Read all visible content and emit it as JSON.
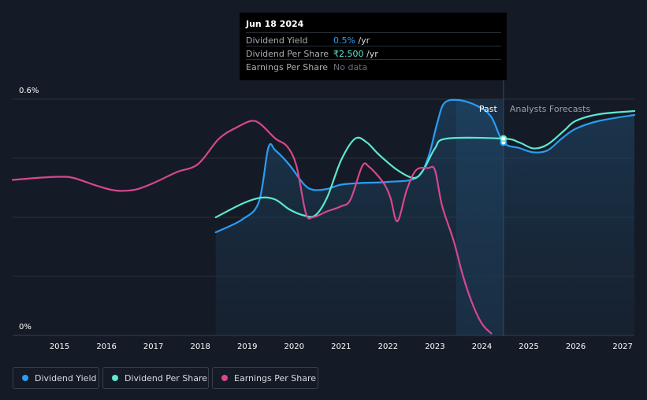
{
  "chart_data": {
    "type": "line",
    "x_range": [
      2014.0,
      2027.25
    ],
    "ylim": [
      0,
      0.6
    ],
    "y_ticks": [
      "0%",
      "0.6%"
    ],
    "x_ticks": [
      "2015",
      "2016",
      "2017",
      "2018",
      "2019",
      "2020",
      "2021",
      "2022",
      "2023",
      "2024",
      "2025",
      "2026",
      "2027"
    ],
    "past_label": "Past",
    "forecast_label": "Analysts Forecasts",
    "marker_year": 2024.46,
    "series": [
      {
        "name": "Dividend Yield",
        "color": "#2a9df4",
        "points": [
          [
            2018.33,
            0.262
          ],
          [
            2018.9,
            0.295
          ],
          [
            2019.25,
            0.34
          ],
          [
            2019.45,
            0.477
          ],
          [
            2019.6,
            0.47
          ],
          [
            2019.9,
            0.433
          ],
          [
            2020.2,
            0.385
          ],
          [
            2020.4,
            0.37
          ],
          [
            2020.7,
            0.372
          ],
          [
            2021.0,
            0.383
          ],
          [
            2021.4,
            0.387
          ],
          [
            2022.0,
            0.39
          ],
          [
            2022.6,
            0.4
          ],
          [
            2022.85,
            0.45
          ],
          [
            2023.05,
            0.54
          ],
          [
            2023.2,
            0.59
          ],
          [
            2023.5,
            0.598
          ],
          [
            2023.9,
            0.583
          ],
          [
            2024.2,
            0.555
          ],
          [
            2024.46,
            0.49
          ],
          [
            2024.8,
            0.476
          ],
          [
            2025.1,
            0.465
          ],
          [
            2025.4,
            0.47
          ],
          [
            2025.7,
            0.5
          ],
          [
            2026.0,
            0.525
          ],
          [
            2026.5,
            0.545
          ],
          [
            2027.25,
            0.56
          ]
        ]
      },
      {
        "name": "Dividend Per Share",
        "color": "#5ce8d0",
        "points": [
          [
            2018.33,
            0.3
          ],
          [
            2018.9,
            0.335
          ],
          [
            2019.3,
            0.35
          ],
          [
            2019.6,
            0.345
          ],
          [
            2019.9,
            0.32
          ],
          [
            2020.2,
            0.305
          ],
          [
            2020.45,
            0.305
          ],
          [
            2020.7,
            0.35
          ],
          [
            2021.0,
            0.445
          ],
          [
            2021.3,
            0.5
          ],
          [
            2021.55,
            0.49
          ],
          [
            2021.8,
            0.46
          ],
          [
            2022.2,
            0.42
          ],
          [
            2022.55,
            0.4
          ],
          [
            2022.75,
            0.42
          ],
          [
            2023.0,
            0.475
          ],
          [
            2023.25,
            0.5
          ],
          [
            2024.46,
            0.5
          ],
          [
            2024.8,
            0.49
          ],
          [
            2025.1,
            0.475
          ],
          [
            2025.4,
            0.485
          ],
          [
            2025.75,
            0.52
          ],
          [
            2026.0,
            0.545
          ],
          [
            2026.5,
            0.562
          ],
          [
            2027.25,
            0.57
          ]
        ]
      },
      {
        "name": "Earnings Per Share",
        "color": "#d7478f",
        "points": [
          [
            2014.0,
            0.395
          ],
          [
            2014.5,
            0.4
          ],
          [
            2015.0,
            0.403
          ],
          [
            2015.3,
            0.4
          ],
          [
            2015.8,
            0.38
          ],
          [
            2016.2,
            0.368
          ],
          [
            2016.6,
            0.37
          ],
          [
            2017.0,
            0.387
          ],
          [
            2017.5,
            0.415
          ],
          [
            2017.95,
            0.435
          ],
          [
            2018.4,
            0.5
          ],
          [
            2018.8,
            0.53
          ],
          [
            2019.1,
            0.545
          ],
          [
            2019.3,
            0.535
          ],
          [
            2019.6,
            0.5
          ],
          [
            2019.85,
            0.48
          ],
          [
            2020.05,
            0.43
          ],
          [
            2020.25,
            0.31
          ],
          [
            2020.4,
            0.3
          ],
          [
            2020.7,
            0.315
          ],
          [
            2021.0,
            0.328
          ],
          [
            2021.2,
            0.345
          ],
          [
            2021.45,
            0.43
          ],
          [
            2021.6,
            0.428
          ],
          [
            2021.9,
            0.388
          ],
          [
            2022.05,
            0.35
          ],
          [
            2022.2,
            0.29
          ],
          [
            2022.4,
            0.37
          ],
          [
            2022.6,
            0.42
          ],
          [
            2022.85,
            0.425
          ],
          [
            2023.0,
            0.42
          ],
          [
            2023.15,
            0.33
          ],
          [
            2023.4,
            0.24
          ],
          [
            2023.6,
            0.15
          ],
          [
            2023.8,
            0.08
          ],
          [
            2024.0,
            0.03
          ],
          [
            2024.2,
            0.005
          ]
        ]
      }
    ]
  },
  "tooltip": {
    "date": "Jun 18 2024",
    "rows": [
      {
        "label": "Dividend Yield",
        "value": "0.5%",
        "unit": " /yr"
      },
      {
        "label": "Dividend Per Share",
        "value": "₹2.500",
        "unit": " /yr"
      },
      {
        "label": "Earnings Per Share",
        "value": "No data",
        "unit": ""
      }
    ]
  },
  "legend": [
    {
      "label": "Dividend Yield",
      "color": "#2a9df4"
    },
    {
      "label": "Dividend Per Share",
      "color": "#5ce8d0"
    },
    {
      "label": "Earnings Per Share",
      "color": "#d7478f"
    }
  ]
}
